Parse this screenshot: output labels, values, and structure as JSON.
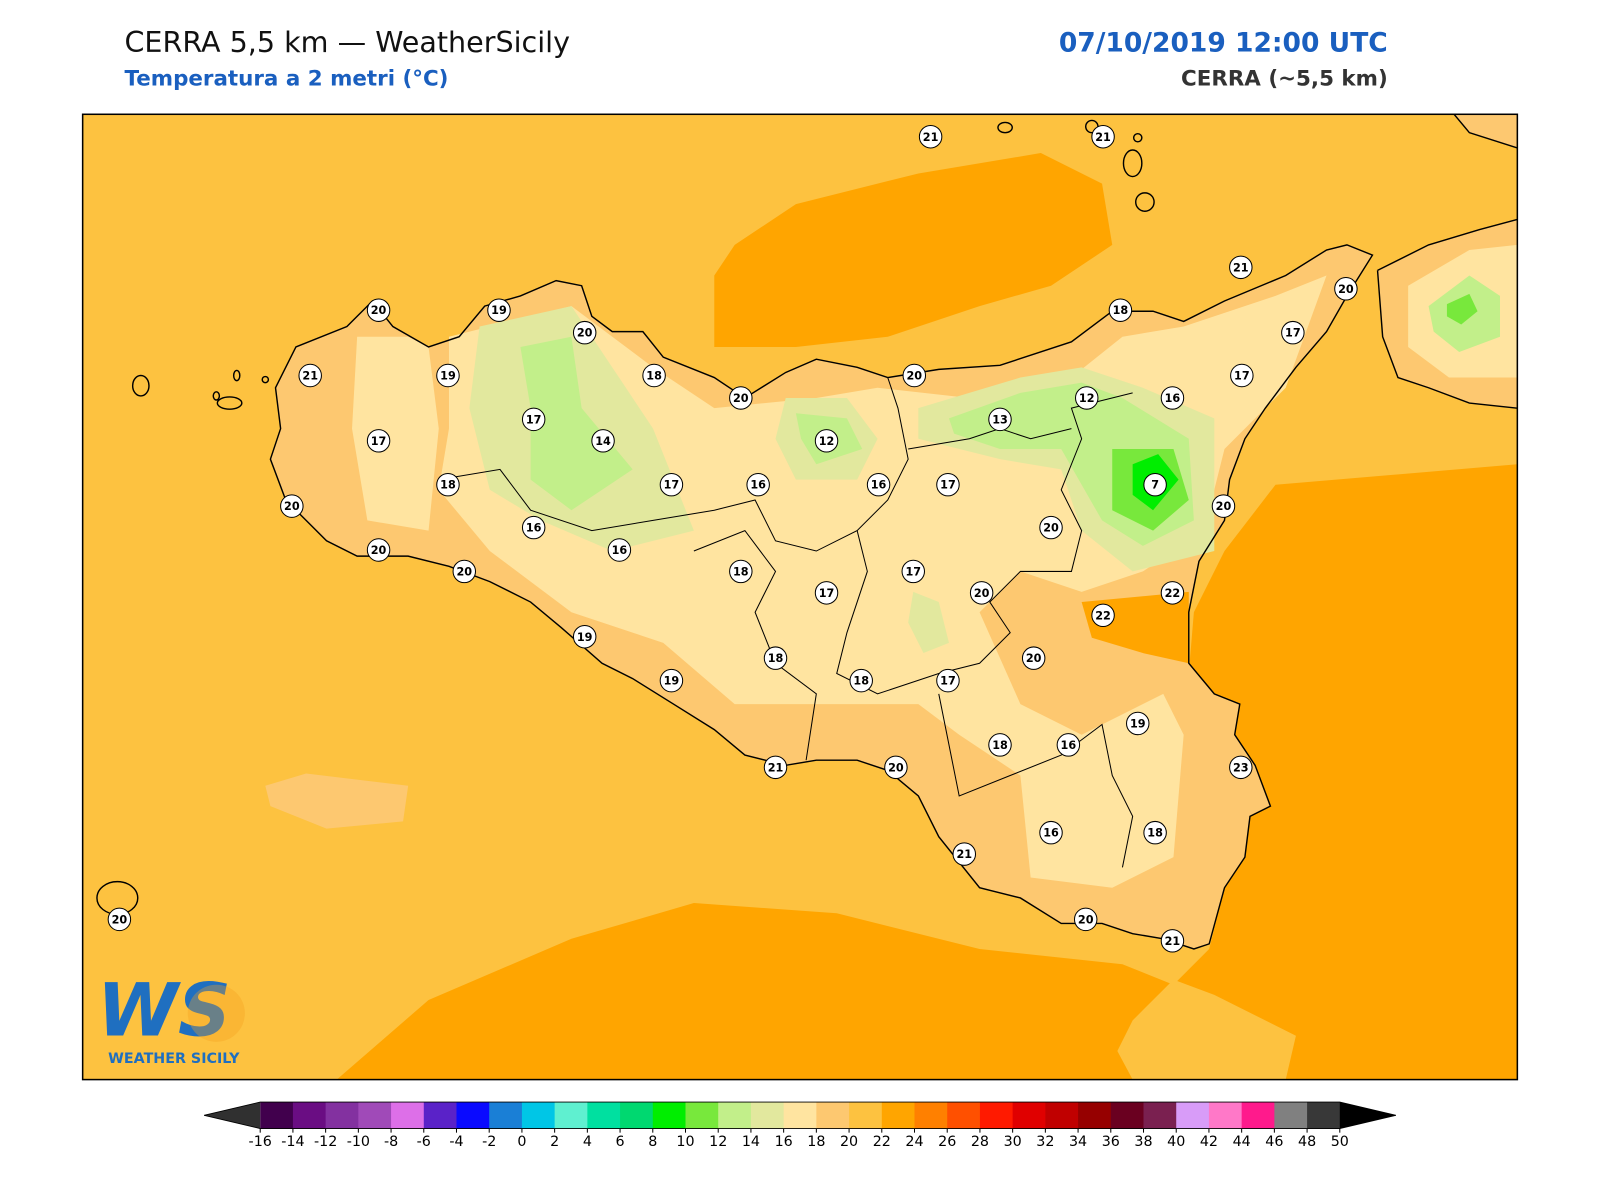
{
  "header": {
    "title": "CERRA 5,5 km — WeatherSicily",
    "subtitle": "Temperatura a 2 metri (°C)",
    "datetime": "07/10/2019 12:00 UTC",
    "model": "CERRA (~5,5 km)"
  },
  "stations": [
    21,
    21,
    21,
    20,
    18,
    17,
    17,
    16,
    12,
    13,
    20,
    20,
    18,
    20,
    19,
    20,
    21,
    19,
    17,
    14,
    12,
    17,
    18,
    17,
    16,
    16,
    17,
    7,
    20,
    20,
    16,
    16,
    20,
    20,
    20,
    18,
    17,
    17,
    20,
    22,
    22,
    19,
    18,
    20,
    19,
    18,
    17,
    19,
    18,
    16,
    21,
    20,
    23,
    21,
    16,
    18,
    20,
    21,
    20
  ],
  "colorbar": {
    "ticks": [
      -16,
      -14,
      -12,
      -10,
      -8,
      -6,
      -4,
      -2,
      0,
      2,
      4,
      6,
      8,
      10,
      12,
      14,
      16,
      18,
      20,
      22,
      24,
      26,
      28,
      30,
      32,
      34,
      36,
      38,
      40,
      42,
      44,
      46,
      48,
      50
    ],
    "colors": [
      "#41004d",
      "#6a0d83",
      "#8331a0",
      "#a04ab8",
      "#dd6fe8",
      "#5a22c8",
      "#0a0aff",
      "#1a7fd6",
      "#00c6e6",
      "#5ff0d0",
      "#00e0a0",
      "#00d870",
      "#00ee00",
      "#78e83c",
      "#c2ef8a",
      "#e2e89e",
      "#ffe4a0",
      "#fdc870",
      "#fdc240",
      "#ffa500",
      "#ff8000",
      "#ff5000",
      "#ff1a00",
      "#e00000",
      "#c00000",
      "#960000",
      "#6a0020",
      "#7a2050",
      "#d89cf8",
      "#ff78c8",
      "#ff1a8c",
      "#808080",
      "#383838"
    ],
    "under_color": "#303030",
    "over_color": "#000000"
  },
  "logo": {
    "text": "WS",
    "tagline": "WEATHER SICILY"
  }
}
